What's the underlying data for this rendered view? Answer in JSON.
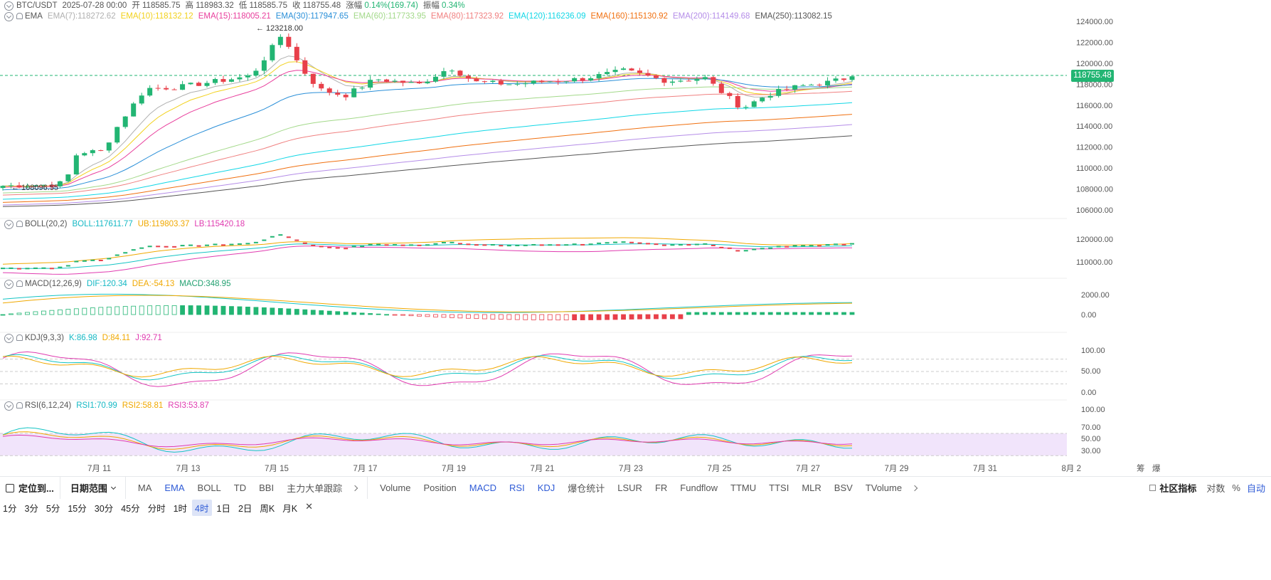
{
  "header": {
    "pair": "BTC/USDT",
    "datetime": "2025-07-28 00:00",
    "open_label": "开",
    "open": "118585.75",
    "high_label": "高",
    "high": "118983.32",
    "low_label": "低",
    "low": "118585.75",
    "close_label": "收",
    "close": "118755.48",
    "change_label": "涨幅",
    "change": "0.14%(169.74)",
    "amp_label": "振幅",
    "amp": "0.34%"
  },
  "ema_legend": {
    "name": "EMA",
    "items": [
      {
        "label": "EMA(7):118272.62",
        "color": "#b0b0b0"
      },
      {
        "label": "EMA(10):118132.12",
        "color": "#f2d11b"
      },
      {
        "label": "EMA(15):118005.21",
        "color": "#e83e9c"
      },
      {
        "label": "EMA(30):117947.65",
        "color": "#2a8fd8"
      },
      {
        "label": "EMA(60):117733.95",
        "color": "#a3d98a"
      },
      {
        "label": "EMA(80):117323.92",
        "color": "#f08080"
      },
      {
        "label": "EMA(120):116236.09",
        "color": "#11d7e6"
      },
      {
        "label": "EMA(160):115130.92",
        "color": "#f07010"
      },
      {
        "label": "EMA(200):114149.68",
        "color": "#b58de8"
      },
      {
        "label": "EMA(250):113082.15",
        "color": "#555555"
      }
    ]
  },
  "price_axis": [
    "124000.00",
    "122000.00",
    "120000.00",
    "118000.00",
    "116000.00",
    "114000.00",
    "112000.00",
    "110000.00",
    "108000.00",
    "106000.00"
  ],
  "current_price_tag": "118755.48",
  "max_label": "123218.00",
  "min_label": "108096.55",
  "boll": {
    "name": "BOLL(20,2)",
    "mid": "BOLL:117611.77",
    "ub": "UB:119803.37",
    "lb": "LB:115420.18",
    "axis": [
      "120000.00",
      "110000.00"
    ]
  },
  "macd": {
    "name": "MACD(12,26,9)",
    "dif": "DIF:120.34",
    "dea": "DEA:-54.13",
    "macd": "MACD:348.95",
    "axis": [
      "2000.00",
      "0.00"
    ]
  },
  "kdj": {
    "name": "KDJ(9,3,3)",
    "k": "K:86.98",
    "d": "D:84.11",
    "j": "J:92.71",
    "axis": [
      "100.00",
      "50.00",
      "0.00"
    ]
  },
  "rsi": {
    "name": "RSI(6,12,24)",
    "r1": "RSI1:70.99",
    "r2": "RSI2:58.81",
    "r3": "RSI3:53.87",
    "axis": [
      "100.00",
      "70.00",
      "50.00",
      "30.00"
    ]
  },
  "x_axis": [
    "7月 11",
    "7月 13",
    "7月 15",
    "7月 17",
    "7月 19",
    "7月 21",
    "7月 23",
    "7月 25",
    "7月 27",
    "7月 29",
    "7月 31",
    "8月 2"
  ],
  "x_axis_extra": [
    "筹",
    "爆"
  ],
  "toolbar": {
    "locate": "定位到...",
    "date_range": "日期范围",
    "main_indicators": [
      "MA",
      "EMA",
      "BOLL",
      "TD",
      "BBI",
      "主力大单跟踪"
    ],
    "active_main": "EMA",
    "sub_indicators": [
      "Volume",
      "Position",
      "MACD",
      "RSI",
      "KDJ",
      "爆仓统计",
      "LSUR",
      "FR",
      "Fundflow",
      "TTMU",
      "TTSI",
      "MLR",
      "BSV",
      "TVolume"
    ],
    "active_sub": [
      "MACD",
      "RSI",
      "KDJ"
    ],
    "community": "社区指标",
    "log": "对数",
    "percent": "%",
    "auto": "自动"
  },
  "timeframes": [
    "1分",
    "3分",
    "5分",
    "15分",
    "30分",
    "45分",
    "分时",
    "1时",
    "4时",
    "1日",
    "2日",
    "周K",
    "月K"
  ],
  "active_timeframe": "4时",
  "colors": {
    "up": "#22b573",
    "down": "#e8404a",
    "rsi_band": "#f1e4fb"
  }
}
